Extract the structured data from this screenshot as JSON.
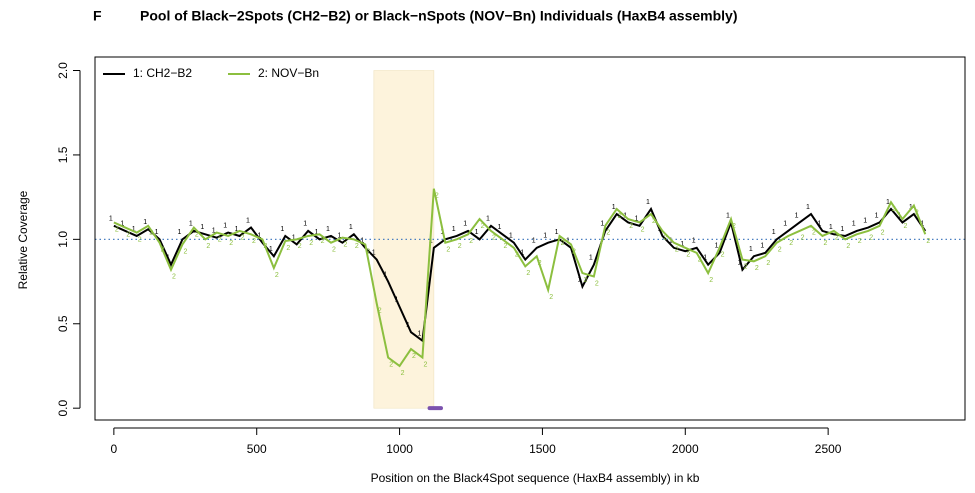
{
  "chart_data": {
    "type": "line",
    "panel_label": "F",
    "title": "Pool of Black−2Spots (CH2−B2) or Black−nSpots (NOV−Bn) Individuals  (HaxB4 assembly)",
    "x_label": "Position on the Black4Spot sequence (HaxB4 assembly) in kb",
    "y_label": "Relative Coverage",
    "xlim": [
      -66,
      2979
    ],
    "ylim": [
      -0.07,
      2.08
    ],
    "xticks": [
      0,
      500,
      1000,
      1500,
      2000,
      2500
    ],
    "yticks": [
      {
        "value": 0,
        "label": "0.0"
      },
      {
        "value": 0.5,
        "label": "0.5"
      },
      {
        "value": 1,
        "label": "1.0"
      },
      {
        "value": 1.5,
        "label": "1.5"
      },
      {
        "value": 2,
        "label": "2.0"
      }
    ],
    "reference_line": {
      "value": 1,
      "color": "#4a7fc1"
    },
    "highlight": {
      "x": [
        910,
        1120
      ],
      "y": [
        0,
        2
      ],
      "color": "#fdf3dc"
    },
    "segment": {
      "x": [
        1105,
        1145
      ],
      "y": 0,
      "color": "#7b52ae"
    },
    "legend": "top-left",
    "x": [
      0,
      40,
      80,
      120,
      160,
      200,
      240,
      280,
      320,
      360,
      400,
      440,
      480,
      520,
      560,
      600,
      640,
      680,
      720,
      760,
      800,
      840,
      880,
      920,
      960,
      1000,
      1040,
      1080,
      1120,
      1160,
      1200,
      1240,
      1280,
      1320,
      1360,
      1400,
      1440,
      1480,
      1520,
      1560,
      1600,
      1640,
      1680,
      1720,
      1760,
      1800,
      1840,
      1880,
      1920,
      1960,
      2000,
      2040,
      2080,
      2120,
      2160,
      2200,
      2240,
      2280,
      2320,
      2360,
      2400,
      2440,
      2480,
      2520,
      2560,
      2600,
      2640,
      2680,
      2720,
      2760,
      2800,
      2840
    ],
    "series": [
      {
        "name": "1: CH2−B2",
        "marker": "1",
        "color": "#000000",
        "values": [
          1.08,
          1.05,
          1.02,
          1.06,
          1.0,
          0.85,
          1.0,
          1.05,
          1.03,
          1.01,
          1.04,
          1.02,
          1.07,
          0.98,
          0.9,
          1.02,
          0.97,
          1.05,
          1.0,
          1.02,
          0.98,
          1.03,
          0.95,
          0.88,
          0.75,
          0.6,
          0.45,
          0.4,
          0.95,
          1.0,
          1.02,
          1.05,
          1.0,
          1.08,
          1.03,
          0.98,
          0.88,
          0.95,
          0.98,
          1.0,
          0.95,
          0.72,
          0.85,
          1.05,
          1.15,
          1.1,
          1.08,
          1.18,
          1.02,
          0.95,
          0.93,
          0.95,
          0.85,
          0.92,
          1.1,
          0.82,
          0.9,
          0.92,
          1.0,
          1.05,
          1.1,
          1.15,
          1.05,
          1.03,
          1.02,
          1.05,
          1.07,
          1.1,
          1.18,
          1.1,
          1.15,
          1.05
        ]
      },
      {
        "name": "2: NOV−Bn",
        "marker": "2",
        "color": "#8cbf3f",
        "values": [
          1.1,
          1.07,
          1.04,
          1.08,
          0.98,
          0.82,
          0.97,
          1.07,
          1.0,
          1.04,
          1.02,
          1.05,
          1.03,
          1.0,
          0.83,
          0.99,
          1.0,
          1.02,
          1.03,
          0.98,
          1.01,
          1.0,
          0.97,
          0.62,
          0.3,
          0.25,
          0.35,
          0.3,
          1.3,
          0.98,
          1.0,
          1.03,
          1.12,
          1.05,
          1.0,
          0.95,
          0.84,
          0.9,
          0.7,
          1.02,
          0.97,
          0.8,
          0.78,
          1.08,
          1.18,
          1.12,
          1.1,
          1.15,
          1.05,
          0.98,
          0.95,
          0.92,
          0.8,
          0.95,
          1.12,
          0.88,
          0.87,
          0.9,
          0.98,
          1.02,
          1.05,
          1.08,
          1.02,
          1.05,
          1.0,
          1.03,
          1.05,
          1.08,
          1.22,
          1.12,
          1.2,
          1.03
        ]
      }
    ]
  }
}
